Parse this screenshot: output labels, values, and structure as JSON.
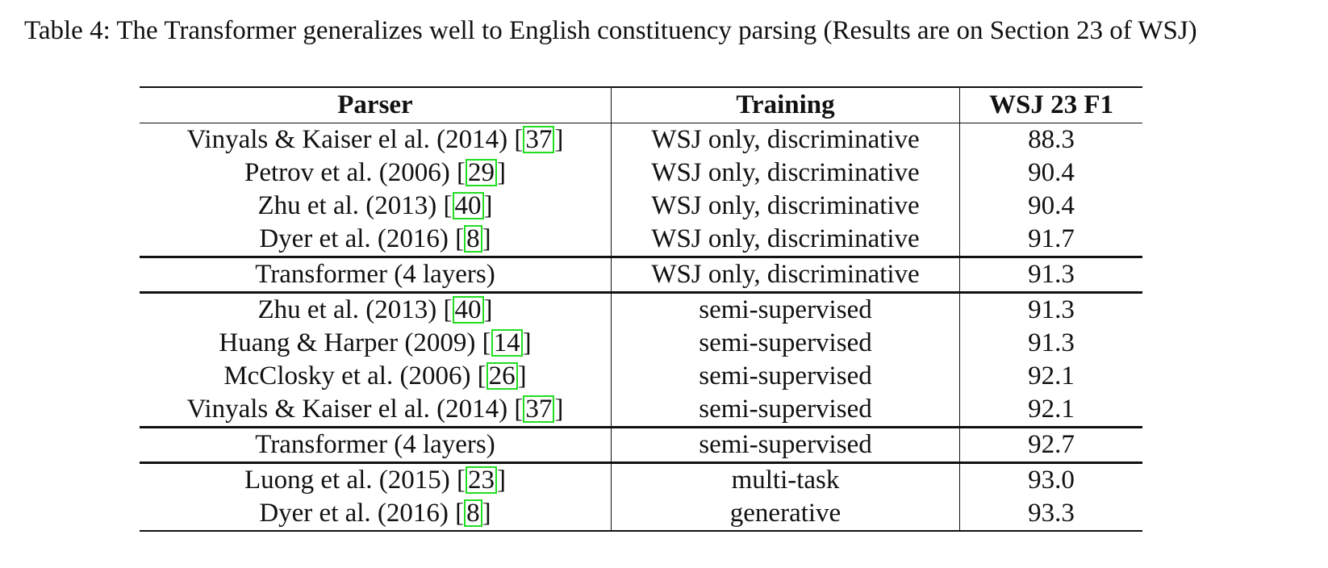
{
  "caption": "Table 4: The Transformer generalizes well to English constituency parsing (Results are on Section 23 of WSJ)",
  "table": {
    "header": [
      "Parser",
      "Training",
      "WSJ 23 F1"
    ],
    "sections": [
      [
        {
          "parser": [
            "Vinyals & Kaiser el al. (2014) [",
            "37",
            "]"
          ],
          "training": "WSJ only, discriminative",
          "f1": "88.3"
        },
        {
          "parser": [
            "Petrov et al. (2006) [",
            "29",
            "]"
          ],
          "training": "WSJ only, discriminative",
          "f1": "90.4"
        },
        {
          "parser": [
            "Zhu et al. (2013) [",
            "40",
            "]"
          ],
          "training": "WSJ only, discriminative",
          "f1": "90.4"
        },
        {
          "parser": [
            "Dyer et al. (2016) [",
            "8",
            "]"
          ],
          "training": "WSJ only, discriminative",
          "f1": "91.7"
        }
      ],
      [
        {
          "parser": [
            "Transformer (4 layers)"
          ],
          "training": "WSJ only, discriminative",
          "f1": "91.3"
        }
      ],
      [
        {
          "parser": [
            "Zhu et al. (2013) [",
            "40",
            "]"
          ],
          "training": "semi-supervised",
          "f1": "91.3"
        },
        {
          "parser": [
            "Huang & Harper (2009) [",
            "14",
            "]"
          ],
          "training": "semi-supervised",
          "f1": "91.3"
        },
        {
          "parser": [
            "McClosky et al. (2006) [",
            "26",
            "]"
          ],
          "training": "semi-supervised",
          "f1": "92.1"
        },
        {
          "parser": [
            "Vinyals & Kaiser el al. (2014) [",
            "37",
            "]"
          ],
          "training": "semi-supervised",
          "f1": "92.1"
        }
      ],
      [
        {
          "parser": [
            "Transformer (4 layers)"
          ],
          "training": "semi-supervised",
          "f1": "92.7"
        }
      ],
      [
        {
          "parser": [
            "Luong et al. (2015) [",
            "23",
            "]"
          ],
          "training": "multi-task",
          "f1": "93.0"
        },
        {
          "parser": [
            "Dyer et al. (2016) [",
            "8",
            "]"
          ],
          "training": "generative",
          "f1": "93.3"
        }
      ]
    ]
  }
}
